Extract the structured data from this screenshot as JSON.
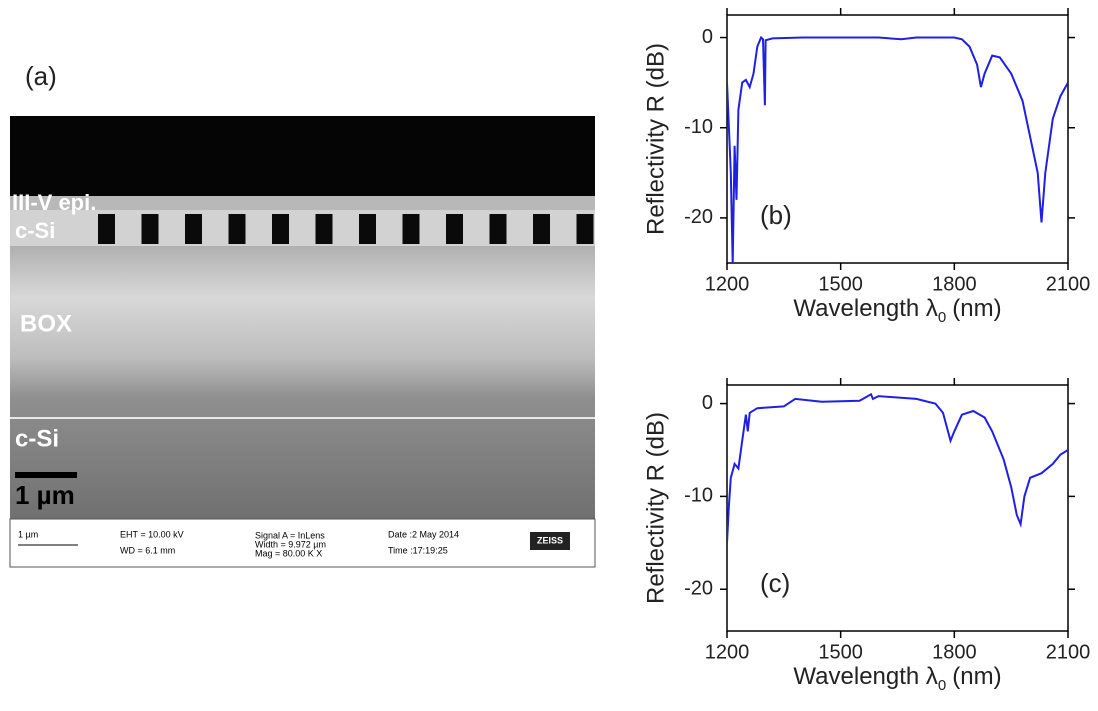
{
  "figure": {
    "panel_a": {
      "label": "(a)",
      "layers": [
        "III-V epi.",
        "c-Si",
        "BOX",
        "c-Si"
      ],
      "scale_bar": "1 µm",
      "info_bar": {
        "scale": "1 µm",
        "eht": "EHT = 10.00 kV",
        "wd": "WD = 6.1 mm",
        "signal": "Signal A = InLens",
        "width": "Width = 9.972 µm",
        "mag": "Mag = 80.00 K X",
        "date": "Date :2 May 2014",
        "time": "Time :17:19:25",
        "logo": "ZEISS"
      }
    }
  },
  "chart_data": [
    {
      "type": "line",
      "panel_label": "(b)",
      "ylabel": "Reflectivity R (dB)",
      "xlabel": [
        "Wavelength λ",
        "0",
        "(nm)"
      ],
      "xlim": [
        1200,
        2100
      ],
      "xticks": [
        1200,
        1500,
        1800,
        2100
      ],
      "ylim": [
        -25,
        2.5
      ],
      "yticks": [
        0,
        -10,
        -20
      ],
      "series": [
        {
          "color": "#1f1fe6",
          "x": [
            1200,
            1210,
            1215,
            1220,
            1225,
            1230,
            1240,
            1250,
            1260,
            1270,
            1280,
            1290,
            1295,
            1300,
            1302,
            1320,
            1400,
            1500,
            1600,
            1660,
            1700,
            1800,
            1820,
            1840,
            1860,
            1870,
            1880,
            1900,
            1920,
            1950,
            1980,
            2000,
            2020,
            2030,
            2040,
            2060,
            2080,
            2100
          ],
          "values": [
            -5,
            -15,
            -25,
            -12,
            -18,
            -8,
            -5,
            -4.7,
            -5.5,
            -4,
            -1,
            0,
            -0.2,
            -7.5,
            -0.3,
            -0.1,
            0,
            0,
            0,
            -0.2,
            0,
            0,
            -0.2,
            -1,
            -3,
            -5.5,
            -4,
            -2,
            -2.2,
            -4,
            -7,
            -11,
            -15,
            -20.5,
            -15,
            -9,
            -6.5,
            -5
          ]
        }
      ]
    },
    {
      "type": "line",
      "panel_label": "(c)",
      "ylabel": "Reflectivity R (dB)",
      "xlabel": [
        "Wavelength λ",
        "0",
        "(nm)"
      ],
      "xlim": [
        1200,
        2100
      ],
      "xticks": [
        1200,
        1500,
        1800,
        2100
      ],
      "ylim": [
        -24.5,
        2
      ],
      "yticks": [
        0,
        -10,
        -20
      ],
      "series": [
        {
          "color": "#1f1fe6",
          "x": [
            1200,
            1205,
            1210,
            1220,
            1230,
            1240,
            1250,
            1255,
            1260,
            1280,
            1350,
            1380,
            1450,
            1550,
            1580,
            1585,
            1600,
            1700,
            1750,
            1770,
            1790,
            1800,
            1820,
            1850,
            1880,
            1900,
            1930,
            1950,
            1965,
            1975,
            1985,
            2000,
            2030,
            2060,
            2080,
            2100
          ],
          "values": [
            -15,
            -11,
            -8,
            -6.5,
            -7,
            -4,
            -1.2,
            -3,
            -1,
            -0.5,
            -0.3,
            0.5,
            0.2,
            0.3,
            1,
            0.5,
            0.8,
            0.5,
            0,
            -1,
            -4,
            -3,
            -1.2,
            -0.8,
            -1.5,
            -3,
            -6,
            -9,
            -12,
            -13,
            -10,
            -8,
            -7.5,
            -6.5,
            -5.5,
            -5
          ]
        }
      ]
    }
  ]
}
